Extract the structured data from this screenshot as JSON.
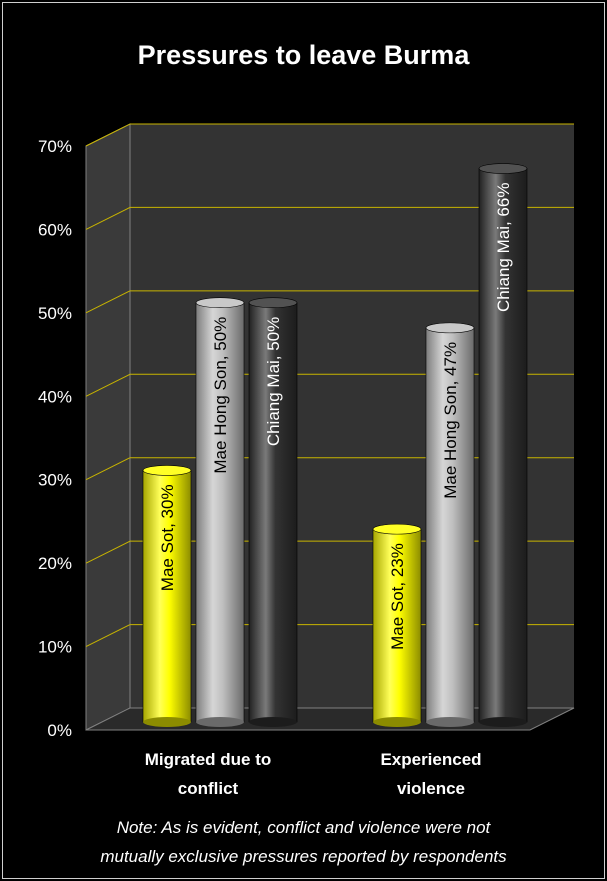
{
  "chart_data": {
    "type": "bar",
    "title": "Pressures to leave Burma",
    "categories": [
      "Migrated due to conflict",
      "Experienced violence"
    ],
    "category_lines": [
      [
        "Migrated due to",
        "conflict"
      ],
      [
        "Experienced",
        "violence"
      ]
    ],
    "series": [
      {
        "name": "Mae Sot",
        "values": [
          30,
          23
        ],
        "color": "#ffff00",
        "labels": [
          "Mae Sot, 30%",
          "Mae Sot, 23%"
        ]
      },
      {
        "name": "Mae Hong Son",
        "values": [
          50,
          47
        ],
        "color": "#c0c0c0",
        "labels": [
          "Mae Hong Son, 50%",
          "Mae Hong Son, 47%"
        ]
      },
      {
        "name": "Chiang Mai",
        "values": [
          50,
          66
        ],
        "color": "#333333",
        "labels": [
          "Chiang Mai, 50%",
          "Chiang Mai, 66%"
        ]
      }
    ],
    "ylim": [
      0,
      70
    ],
    "yticks": [
      0,
      10,
      20,
      30,
      40,
      50,
      60,
      70
    ],
    "ytick_labels": [
      "0%",
      "10%",
      "20%",
      "30%",
      "40%",
      "50%",
      "60%",
      "70%"
    ],
    "grid": true,
    "style": "3d-cylinder"
  },
  "note": {
    "lines": [
      "Note: As is evident, conflict and violence were not",
      "mutually exclusive pressures reported by respondents"
    ]
  },
  "colors": {
    "background": "#000000",
    "plot_wall": "#333333",
    "gridline": "#c8b400",
    "text": "#ffffff"
  }
}
